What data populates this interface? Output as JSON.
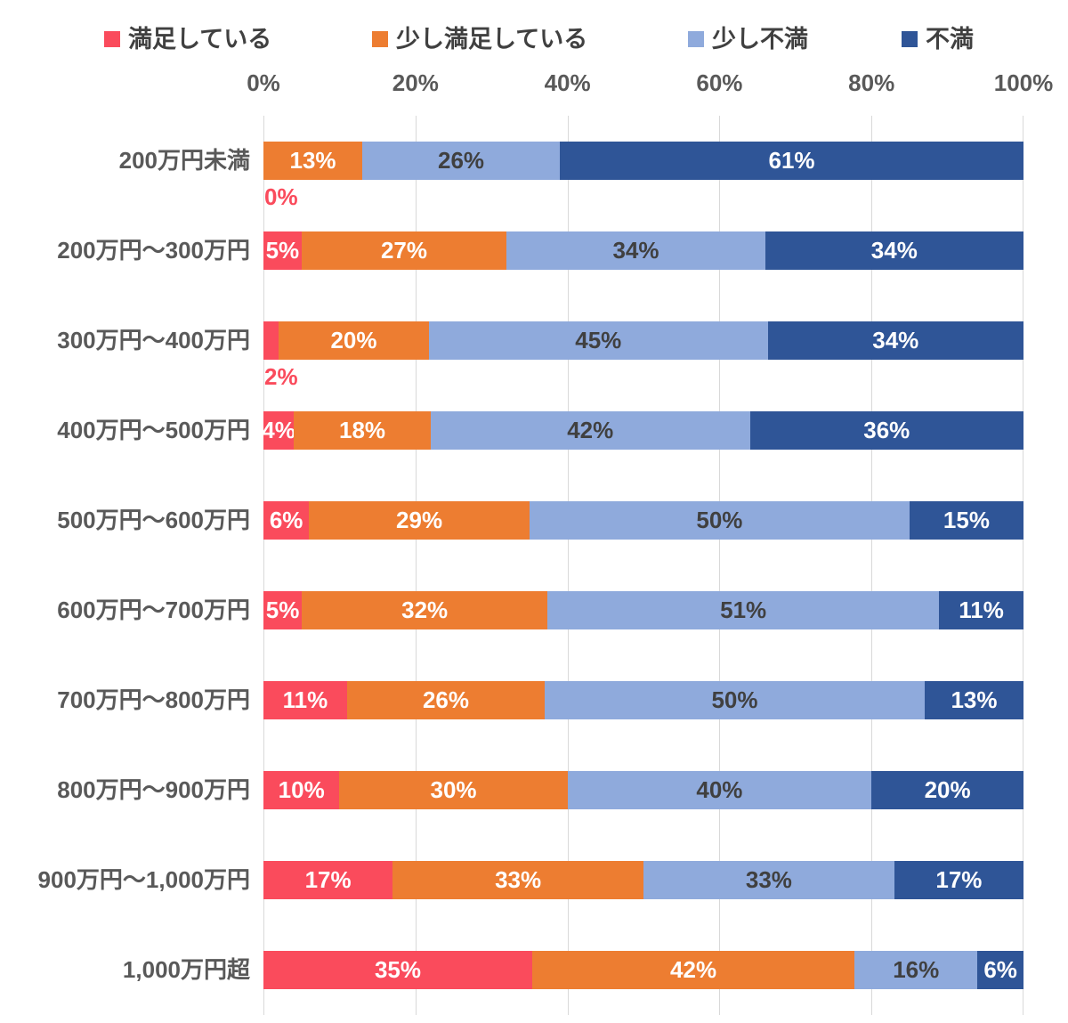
{
  "chart_data": {
    "type": "bar",
    "subtype": "horizontal-stacked-100-percent",
    "title": "",
    "xlabel": "",
    "ylabel": "",
    "legend_position": "top",
    "grid": true,
    "gridline_color": "#D9D9D9",
    "axis_text_color": "#595959",
    "x_axis": {
      "range": [
        0,
        100
      ],
      "ticks": [
        "0%",
        "20%",
        "40%",
        "60%",
        "80%",
        "100%"
      ]
    },
    "categories": [
      "200万円未満",
      "200万円〜300万円",
      "300万円〜400万円",
      "400万円〜500万円",
      "500万円〜600万円",
      "600万円〜700万円",
      "700万円〜800万円",
      "800万円〜900万円",
      "900万円〜1,000万円",
      "1,000万円超"
    ],
    "series": [
      {
        "name": "満足している",
        "color": "#FA4B5C",
        "label_color": "#FFFFFF",
        "values": [
          0,
          5,
          2,
          4,
          6,
          5,
          11,
          10,
          17,
          35
        ],
        "labels": [
          "0%",
          "5%",
          "2%",
          "4%",
          "6%",
          "5%",
          "11%",
          "10%",
          "17%",
          "35%"
        ]
      },
      {
        "name": "少し満足している",
        "color": "#ED7D31",
        "label_color": "#FFFFFF",
        "values": [
          13,
          27,
          20,
          18,
          29,
          32,
          26,
          30,
          33,
          42
        ],
        "labels": [
          "13%",
          "27%",
          "20%",
          "18%",
          "29%",
          "32%",
          "26%",
          "30%",
          "33%",
          "42%"
        ]
      },
      {
        "name": "少し不満",
        "color": "#8FAADC",
        "label_color": "#404040",
        "values": [
          26,
          34,
          45,
          42,
          50,
          51,
          50,
          40,
          33,
          16
        ],
        "labels": [
          "26%",
          "34%",
          "45%",
          "42%",
          "50%",
          "51%",
          "50%",
          "40%",
          "33%",
          "16%"
        ]
      },
      {
        "name": "不満",
        "color": "#2F5597",
        "label_color": "#FFFFFF",
        "values": [
          61,
          34,
          34,
          36,
          15,
          11,
          13,
          20,
          17,
          6
        ],
        "labels": [
          "61%",
          "34%",
          "34%",
          "36%",
          "15%",
          "11%",
          "13%",
          "20%",
          "17%",
          "6%"
        ]
      }
    ],
    "outside_label_threshold": 3,
    "outside_label_color": "#FA4B5C"
  }
}
